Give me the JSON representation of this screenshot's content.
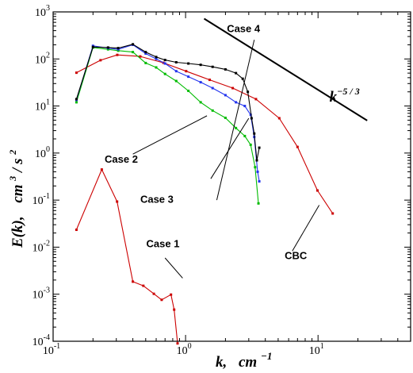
{
  "chart_data": {
    "type": "line",
    "xscale": "log",
    "yscale": "log",
    "xlim": [
      0.1,
      50
    ],
    "ylim": [
      0.0001,
      1000
    ],
    "xticks": [
      {
        "value": 0.1,
        "base": "10",
        "exp": "-1"
      },
      {
        "value": 1,
        "base": "10",
        "exp": "0"
      },
      {
        "value": 10,
        "base": "10",
        "exp": "1"
      }
    ],
    "yticks": [
      {
        "value": 0.0001,
        "base": "10",
        "exp": "-4"
      },
      {
        "value": 0.001,
        "base": "10",
        "exp": "-3"
      },
      {
        "value": 0.01,
        "base": "10",
        "exp": "-2"
      },
      {
        "value": 0.1,
        "base": "10",
        "exp": "-1"
      },
      {
        "value": 1,
        "base": "10",
        "exp": "0"
      },
      {
        "value": 10,
        "base": "10",
        "exp": "1"
      },
      {
        "value": 100,
        "base": "10",
        "exp": "2"
      },
      {
        "value": 1000,
        "base": "10",
        "exp": "3"
      }
    ],
    "xlabel": {
      "main": "k,",
      "unit": "cm",
      "unit_exp": "−1"
    },
    "ylabel": {
      "main": "E(k),",
      "unit": "cm",
      "unit_exp1": "3",
      "unit_mid": " / s",
      "unit_exp2": "2"
    },
    "grid": false,
    "series": [
      {
        "name": "Case 1",
        "color": "#cc0000",
        "x": [
          0.15,
          0.233,
          0.304,
          0.4,
          0.48,
          0.576,
          0.66,
          0.776,
          0.82,
          0.87
        ],
        "y": [
          0.0234,
          0.447,
          0.093,
          0.00185,
          0.00151,
          0.00102,
          0.00076,
          0.00098,
          0.00047,
          9e-05
        ]
      },
      {
        "name": "CBC",
        "color": "#cc0000",
        "x": [
          0.15,
          0.228,
          0.305,
          0.455,
          0.68,
          1.01,
          1.52,
          2.27,
          3.4,
          5.1,
          7.0,
          9.9,
          12.9
        ],
        "y": [
          51,
          94,
          122,
          113,
          83,
          55,
          36,
          24,
          14,
          5.5,
          1.35,
          0.16,
          0.052
        ]
      },
      {
        "name": "Case 2",
        "color": "#00bb00",
        "x": [
          0.15,
          0.2,
          0.26,
          0.31,
          0.4,
          0.5,
          0.6,
          0.7,
          0.85,
          1.05,
          1.3,
          1.6,
          2.0,
          2.4,
          2.8,
          3.1,
          3.35,
          3.55
        ],
        "y": [
          12,
          175,
          160,
          150,
          140,
          82,
          66,
          48,
          34,
          21,
          12,
          8,
          5.6,
          3.4,
          2.3,
          1.5,
          0.5,
          0.085
        ]
      },
      {
        "name": "Case 3",
        "color": "#2233ee",
        "x": [
          0.15,
          0.2,
          0.26,
          0.31,
          0.4,
          0.5,
          0.6,
          0.7,
          0.85,
          1.05,
          1.3,
          1.6,
          2.0,
          2.4,
          2.8,
          3.1,
          3.3,
          3.5,
          3.6
        ],
        "y": [
          13.5,
          190,
          170,
          160,
          200,
          130,
          100,
          80,
          55,
          42,
          32,
          24,
          17,
          12,
          10,
          6.5,
          2.2,
          0.4,
          0.25
        ]
      },
      {
        "name": "Case 4",
        "color": "#000000",
        "x": [
          0.15,
          0.2,
          0.26,
          0.31,
          0.4,
          0.5,
          0.6,
          0.7,
          0.85,
          1.05,
          1.3,
          1.6,
          2.0,
          2.4,
          2.7,
          2.95,
          3.15,
          3.3,
          3.45,
          3.6
        ],
        "y": [
          14,
          180,
          175,
          170,
          205,
          140,
          110,
          95,
          85,
          80,
          75,
          68,
          60,
          50,
          38,
          20,
          5.5,
          2.6,
          0.7,
          1.3
        ]
      },
      {
        "name": "k^-5/3",
        "color": "#000000",
        "x": [
          1.38,
          23.5
        ],
        "y": [
          720,
          4.9
        ]
      }
    ],
    "annotations": [
      {
        "text": "Case 1",
        "x": 0.505,
        "y": 0.0099,
        "line": [
          [
            0.7,
            0.0059
          ],
          [
            0.95,
            0.0022
          ]
        ]
      },
      {
        "text": "Case 2",
        "x": 0.245,
        "y": 0.62,
        "line": [
          [
            0.4,
            0.95
          ],
          [
            1.45,
            6.2
          ]
        ]
      },
      {
        "text": "Case 3",
        "x": 0.455,
        "y": 0.088,
        "line": [
          [
            1.55,
            0.285
          ],
          [
            3.0,
            5.5
          ]
        ]
      },
      {
        "text": "Case 4",
        "x": 2.05,
        "y": 375,
        "line": [
          [
            3.3,
            255
          ],
          [
            1.72,
            0.1
          ]
        ]
      },
      {
        "text": "CBC",
        "x": 5.6,
        "y": 0.0056,
        "line": [
          [
            6.4,
            0.0083
          ],
          [
            10.2,
            0.078
          ]
        ]
      }
    ],
    "slope_label": {
      "text": "k",
      "exp": "−5 / 3",
      "x": 12.2,
      "y": 12.4
    }
  }
}
